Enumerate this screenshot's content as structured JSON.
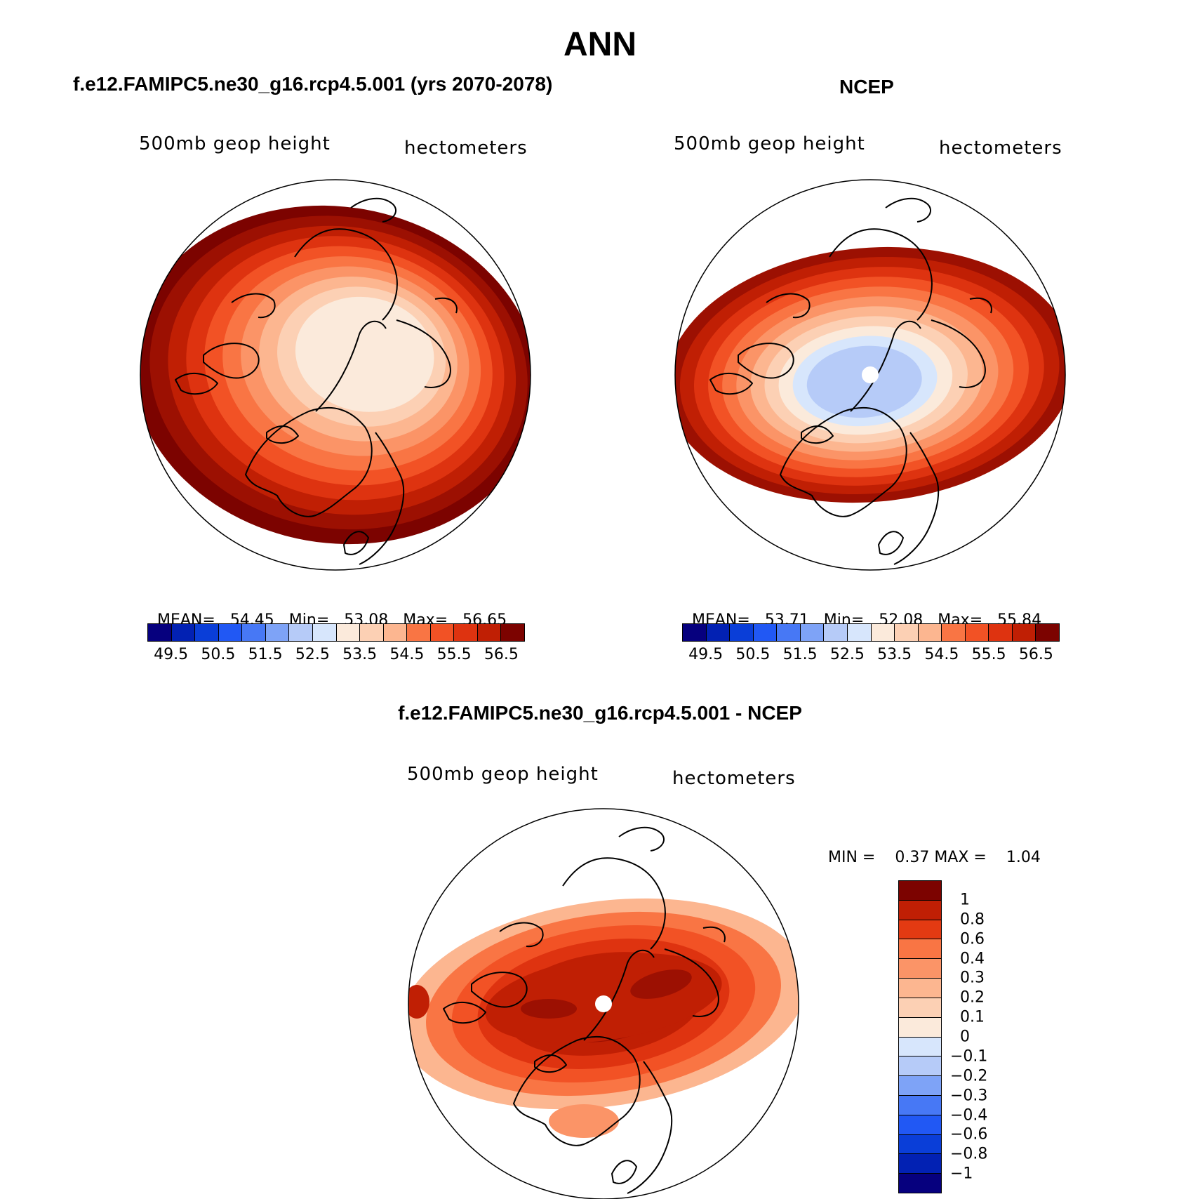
{
  "figure": {
    "title": "ANN"
  },
  "panels": [
    {
      "id": "model",
      "header": "f.e12.FAMIPC5.ne30_g16.rcp4.5.001 (yrs 2070-2078)",
      "left_label": "500mb  geop  height",
      "right_label": "hectometers",
      "stats": {
        "mean_label": "MEAN=",
        "mean": "54.45",
        "min_label": "Min=",
        "min": "53.08",
        "max_label": "Max=",
        "max": "56.65"
      },
      "colors": [
        "#fbeadb",
        "#fcd0b4",
        "#fcb690",
        "#fb9467",
        "#f97544",
        "#f25225",
        "#de3310",
        "#c01f04",
        "#9c1002",
        "#7c0300"
      ]
    },
    {
      "id": "obs",
      "header": "NCEP",
      "left_label": "500mb  geop  height",
      "right_label": "hectometers",
      "stats": {
        "mean_label": "MEAN=",
        "mean": "53.71",
        "min_label": "Min=",
        "min": "52.08",
        "max_label": "Max=",
        "max": "55.84"
      },
      "colors": [
        "#b6cbf8",
        "#d7e6fc",
        "#fbeadb",
        "#fcd0b4",
        "#fcb690",
        "#fb9467",
        "#f97544",
        "#f25225",
        "#de3310",
        "#c01f04",
        "#9c1002"
      ]
    },
    {
      "id": "diff",
      "header": "f.e12.FAMIPC5.ne30_g16.rcp4.5.001 - NCEP",
      "left_label": "500mb  geop  height",
      "right_label": "hectometers",
      "stats": {
        "min_label": "MIN =",
        "min": "0.37",
        "max_label": "MAX =",
        "max": "1.04"
      },
      "colors": [
        "#fcb690",
        "#f97544",
        "#f25225",
        "#de3310",
        "#c01f04",
        "#9c1002"
      ]
    }
  ],
  "colorbar_abs": {
    "colors": [
      "#06007e",
      "#0221b3",
      "#0a3ed8",
      "#2158f4",
      "#4778f5",
      "#7ea3f7",
      "#b6cbf8",
      "#d7e6fc",
      "#fbeadb",
      "#fcd0b4",
      "#fcb690",
      "#f97544",
      "#f25225",
      "#de3310",
      "#c01f04",
      "#7c0300"
    ],
    "ticks": [
      "49.5",
      "50.5",
      "51.5",
      "52.5",
      "53.5",
      "54.5",
      "55.5",
      "56.5"
    ]
  },
  "colorbar_diff": {
    "colors_top_to_bottom": [
      "#7c0300",
      "#c01f04",
      "#e33a12",
      "#f97544",
      "#fb9467",
      "#fcb690",
      "#fcd0b4",
      "#fbeadb",
      "#d7e6fc",
      "#b6cbf8",
      "#7ea3f7",
      "#4778f5",
      "#2158f4",
      "#0a3ed8",
      "#0221b3",
      "#06007e"
    ],
    "ticks_top_to_bottom": [
      "1",
      "0.8",
      "0.6",
      "0.4",
      "0.3",
      "0.2",
      "0.1",
      "0",
      "−0.1",
      "−0.2",
      "−0.3",
      "−0.4",
      "−0.6",
      "−0.8",
      "−1"
    ]
  }
}
